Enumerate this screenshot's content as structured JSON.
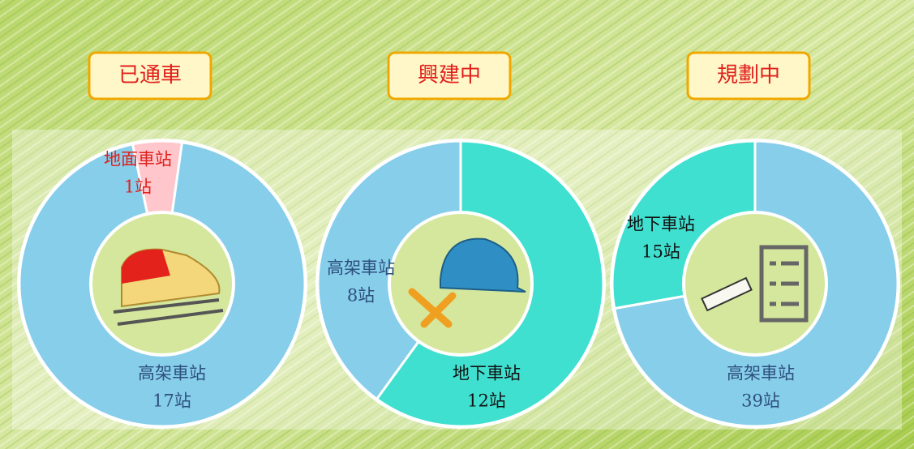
{
  "chart_data": [
    {
      "type": "pie",
      "title": "已通車",
      "categories": [
        "地面車站",
        "高架車站"
      ],
      "values": [
        1,
        17
      ],
      "value_labels": [
        "1站",
        "17站"
      ],
      "colors": [
        "#ffc6cc",
        "#87ceeb"
      ],
      "label_colors": [
        "#e0201c",
        "#2d4f7c"
      ]
    },
    {
      "type": "pie",
      "title": "興建中",
      "categories": [
        "地下車站",
        "高架車站"
      ],
      "values": [
        12,
        8
      ],
      "value_labels": [
        "12站",
        "8站"
      ],
      "colors": [
        "#40e0d0",
        "#87ceeb"
      ],
      "label_colors": [
        "#111111",
        "#2d4f7c"
      ]
    },
    {
      "type": "pie",
      "title": "規劃中",
      "categories": [
        "高架車站",
        "地下車站"
      ],
      "values": [
        39,
        15
      ],
      "value_labels": [
        "39站",
        "15站"
      ],
      "colors": [
        "#87ceeb",
        "#40e0d0"
      ],
      "label_colors": [
        "#2d4f7c",
        "#111111"
      ]
    }
  ]
}
